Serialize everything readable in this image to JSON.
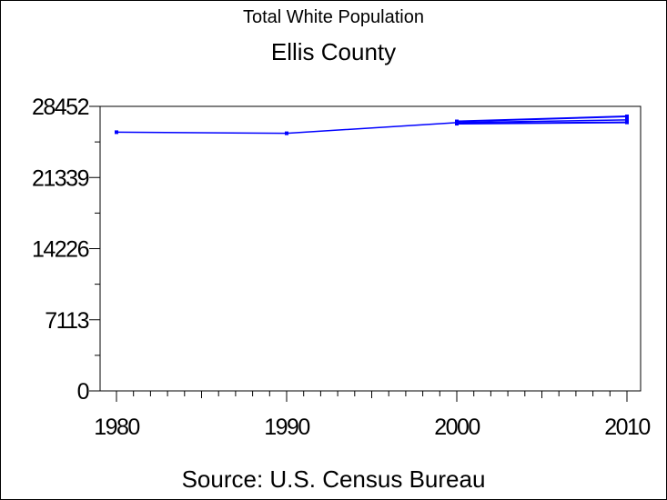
{
  "chart_data": {
    "type": "line",
    "title": "Total White Population",
    "subtitle": "Ellis County",
    "source": "Source: U.S. Census Bureau",
    "xlabel": "",
    "ylabel": "",
    "x_ticks": [
      "1980",
      "1990",
      "2000",
      "2010"
    ],
    "y_ticks": [
      "0",
      "7113",
      "14226",
      "21339",
      "28452"
    ],
    "xlim": [
      1980,
      2010
    ],
    "ylim": [
      0,
      28452
    ],
    "series": [
      {
        "color": "#0000ff",
        "points": [
          {
            "x": 1980,
            "y": 25870
          },
          {
            "x": 1990,
            "y": 25760
          },
          {
            "x": 2000,
            "y": 26830
          },
          {
            "x": 2010,
            "y": 27100
          }
        ]
      },
      {
        "color": "#0000ff",
        "points": [
          {
            "x": 2000,
            "y": 26950
          },
          {
            "x": 2010,
            "y": 27450
          }
        ]
      },
      {
        "color": "#0000ff",
        "points": [
          {
            "x": 2000,
            "y": 26720
          },
          {
            "x": 2010,
            "y": 26850
          }
        ]
      }
    ],
    "grid": false,
    "legend": "none"
  }
}
